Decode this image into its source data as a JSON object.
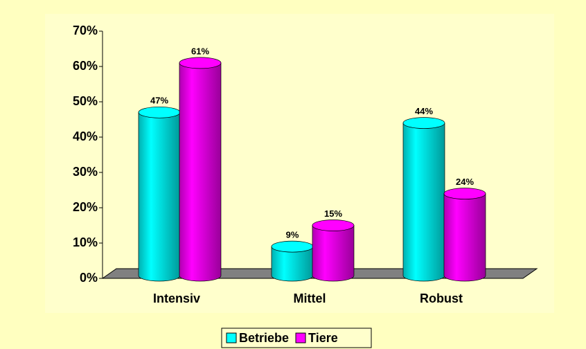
{
  "chart_data": {
    "type": "bar",
    "categories": [
      "Intensiv",
      "Mittel",
      "Robust"
    ],
    "series": [
      {
        "name": "Betriebe",
        "color": "#00FFFF",
        "values": [
          47,
          9,
          44
        ],
        "value_labels": [
          "47%",
          "9%",
          "44%"
        ]
      },
      {
        "name": "Tiere",
        "color": "#FF00FF",
        "values": [
          61,
          15,
          24
        ],
        "value_labels": [
          "61%",
          "15%",
          "24%"
        ]
      }
    ],
    "ylim": [
      0,
      70
    ],
    "yticks": [
      {
        "value": 0,
        "label": "0%"
      },
      {
        "value": 10,
        "label": "10%"
      },
      {
        "value": 20,
        "label": "20%"
      },
      {
        "value": 30,
        "label": "30%"
      },
      {
        "value": 40,
        "label": "40%"
      },
      {
        "value": 50,
        "label": "50%"
      },
      {
        "value": 60,
        "label": "60%"
      },
      {
        "value": 70,
        "label": "70%"
      }
    ],
    "legend": "bottom"
  }
}
